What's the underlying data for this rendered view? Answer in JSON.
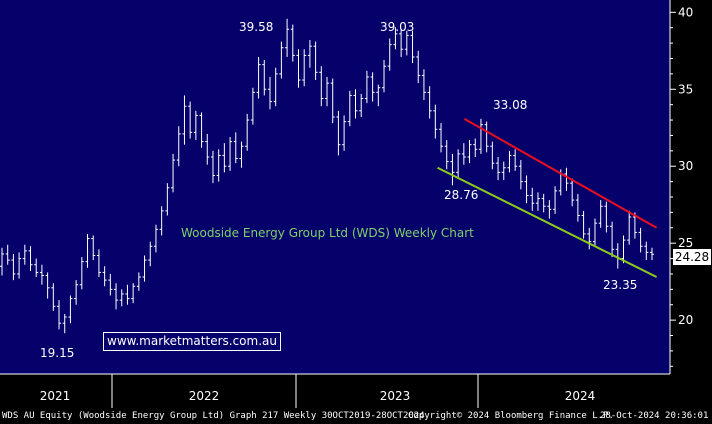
{
  "chart_data": {
    "type": "candlestick",
    "title": "Woodside Energy Group Ltd (WDS) Weekly Chart",
    "website": "www.marketmatters.com.au",
    "y_ticks": [
      "20",
      "25",
      "30",
      "35",
      "40"
    ],
    "x_ticks": [
      "2021",
      "2022",
      "2023",
      "2024"
    ],
    "ylim": [
      16.5,
      40.8
    ],
    "grid": false,
    "last_price": "24.28",
    "annotations": [
      {
        "label": "39.58",
        "x": "2022-06",
        "y": 39.58
      },
      {
        "label": "39.03",
        "x": "2023-01",
        "y": 39.03
      },
      {
        "label": "33.08",
        "x": "2023-09",
        "y": 33.08
      },
      {
        "label": "28.76",
        "x": "2023-07",
        "y": 28.76
      },
      {
        "label": "23.35",
        "x": "2024-08",
        "y": 23.35
      },
      {
        "label": "19.15",
        "x": "2021-02",
        "y": 19.15
      }
    ],
    "trendlines": [
      {
        "name": "resistance",
        "color": "#e8101e",
        "from": {
          "x": "2023-09",
          "y": 33.08
        },
        "to": {
          "x": "2024-10",
          "y": 26.0
        }
      },
      {
        "name": "support",
        "color": "#8ccc1c",
        "from": {
          "x": "2023-07",
          "y": 29.9
        },
        "to": {
          "x": "2024-10",
          "y": 22.8
        }
      }
    ],
    "series": [
      {
        "values": [
          [
            23.5,
            24.7,
            22.9,
            24.3
          ],
          [
            24.3,
            24.9,
            23.6,
            23.9
          ],
          [
            23.9,
            24.3,
            22.6,
            23.0
          ],
          [
            23.0,
            24.4,
            22.7,
            24.0
          ],
          [
            24.0,
            24.9,
            23.6,
            24.5
          ],
          [
            24.5,
            24.8,
            23.2,
            23.6
          ],
          [
            23.6,
            24.0,
            22.8,
            23.1
          ],
          [
            23.1,
            23.6,
            22.3,
            22.9
          ],
          [
            22.9,
            23.1,
            21.4,
            22.1
          ],
          [
            22.1,
            22.4,
            20.6,
            20.9
          ],
          [
            20.9,
            21.3,
            19.4,
            19.8
          ],
          [
            19.8,
            20.4,
            19.15,
            20.2
          ],
          [
            20.2,
            21.6,
            19.8,
            21.4
          ],
          [
            21.4,
            22.6,
            21.0,
            22.3
          ],
          [
            22.3,
            24.1,
            22.0,
            23.8
          ],
          [
            23.8,
            25.6,
            23.4,
            25.3
          ],
          [
            25.3,
            25.5,
            23.9,
            24.2
          ],
          [
            24.2,
            24.6,
            22.8,
            23.1
          ],
          [
            23.1,
            23.5,
            22.2,
            22.6
          ],
          [
            22.6,
            23.0,
            21.6,
            22.0
          ],
          [
            22.0,
            22.4,
            20.7,
            21.3
          ],
          [
            21.3,
            22.0,
            20.9,
            21.7
          ],
          [
            21.7,
            22.3,
            21.0,
            21.4
          ],
          [
            21.4,
            22.4,
            21.1,
            22.2
          ],
          [
            22.2,
            23.1,
            21.9,
            22.8
          ],
          [
            22.8,
            24.2,
            22.5,
            23.9
          ],
          [
            23.9,
            25.1,
            23.5,
            24.8
          ],
          [
            24.8,
            26.2,
            24.4,
            25.9
          ],
          [
            25.9,
            27.4,
            25.5,
            27.1
          ],
          [
            27.1,
            28.9,
            26.8,
            28.6
          ],
          [
            28.6,
            30.8,
            28.3,
            30.4
          ],
          [
            30.4,
            32.6,
            30.0,
            32.1
          ],
          [
            32.1,
            34.6,
            31.4,
            33.9
          ],
          [
            33.9,
            34.2,
            31.8,
            32.2
          ],
          [
            32.2,
            33.6,
            31.7,
            33.3
          ],
          [
            33.3,
            33.5,
            31.2,
            31.6
          ],
          [
            31.6,
            32.1,
            30.1,
            30.6
          ],
          [
            30.6,
            31.0,
            28.9,
            29.4
          ],
          [
            29.4,
            31.1,
            29.0,
            30.7
          ],
          [
            30.7,
            31.5,
            29.6,
            30.0
          ],
          [
            30.0,
            31.9,
            29.7,
            31.6
          ],
          [
            31.6,
            32.2,
            30.2,
            30.5
          ],
          [
            30.5,
            31.6,
            29.9,
            31.3
          ],
          [
            31.3,
            33.4,
            31.0,
            33.0
          ],
          [
            33.0,
            35.1,
            32.7,
            34.8
          ],
          [
            34.8,
            37.1,
            34.4,
            36.6
          ],
          [
            36.6,
            36.9,
            34.6,
            35.0
          ],
          [
            35.0,
            35.8,
            33.7,
            34.2
          ],
          [
            34.2,
            36.4,
            33.9,
            36.0
          ],
          [
            36.0,
            38.1,
            35.7,
            37.7
          ],
          [
            37.7,
            39.58,
            37.1,
            38.9
          ],
          [
            38.9,
            39.2,
            36.8,
            37.2
          ],
          [
            37.2,
            37.6,
            35.1,
            35.6
          ],
          [
            35.6,
            37.6,
            35.2,
            37.2
          ],
          [
            37.2,
            38.2,
            36.4,
            37.8
          ],
          [
            37.8,
            38.1,
            35.6,
            36.1
          ],
          [
            36.1,
            36.5,
            33.9,
            34.4
          ],
          [
            34.4,
            35.8,
            33.9,
            35.4
          ],
          [
            35.4,
            35.7,
            32.8,
            33.2
          ],
          [
            33.2,
            33.6,
            30.7,
            31.4
          ],
          [
            31.4,
            33.3,
            31.0,
            32.9
          ],
          [
            32.9,
            34.9,
            32.6,
            34.6
          ],
          [
            34.6,
            35.0,
            33.1,
            33.6
          ],
          [
            33.6,
            34.7,
            33.2,
            34.4
          ],
          [
            34.4,
            36.2,
            34.1,
            35.8
          ],
          [
            35.8,
            36.1,
            34.2,
            34.8
          ],
          [
            34.8,
            35.3,
            33.9,
            35.1
          ],
          [
            35.1,
            36.9,
            34.8,
            36.5
          ],
          [
            36.5,
            38.3,
            36.2,
            37.9
          ],
          [
            37.9,
            39.03,
            37.6,
            38.6
          ],
          [
            38.6,
            38.9,
            37.1,
            37.6
          ],
          [
            37.6,
            38.8,
            37.2,
            38.5
          ],
          [
            38.5,
            38.8,
            36.7,
            37.1
          ],
          [
            37.1,
            37.5,
            35.4,
            35.9
          ],
          [
            35.9,
            36.3,
            34.3,
            34.8
          ],
          [
            34.8,
            35.2,
            33.1,
            33.6
          ],
          [
            33.6,
            34.0,
            31.8,
            32.4
          ],
          [
            32.4,
            32.8,
            30.9,
            31.3
          ],
          [
            31.3,
            31.7,
            29.8,
            30.3
          ],
          [
            30.3,
            30.8,
            28.76,
            29.6
          ],
          [
            29.6,
            31.1,
            29.3,
            30.8
          ],
          [
            30.8,
            31.5,
            30.1,
            30.6
          ],
          [
            30.6,
            31.7,
            30.2,
            31.4
          ],
          [
            31.4,
            31.8,
            30.6,
            31.1
          ],
          [
            31.1,
            33.08,
            30.8,
            32.7
          ],
          [
            32.7,
            32.9,
            30.9,
            31.3
          ],
          [
            31.3,
            31.6,
            29.8,
            30.2
          ],
          [
            30.2,
            30.6,
            29.1,
            29.6
          ],
          [
            29.6,
            30.3,
            29.1,
            29.9
          ],
          [
            29.9,
            31.0,
            29.6,
            30.7
          ],
          [
            30.7,
            31.1,
            29.7,
            30.0
          ],
          [
            30.0,
            30.4,
            28.5,
            29.0
          ],
          [
            29.0,
            29.4,
            27.6,
            28.1
          ],
          [
            28.1,
            28.6,
            27.1,
            27.6
          ],
          [
            27.6,
            28.3,
            27.1,
            27.9
          ],
          [
            27.9,
            28.2,
            27.0,
            27.4
          ],
          [
            27.4,
            27.8,
            26.6,
            27.2
          ],
          [
            27.2,
            28.7,
            26.9,
            28.4
          ],
          [
            28.4,
            29.8,
            28.1,
            29.5
          ],
          [
            29.5,
            29.9,
            28.4,
            28.9
          ],
          [
            28.9,
            29.2,
            27.4,
            27.8
          ],
          [
            27.8,
            28.2,
            26.4,
            26.8
          ],
          [
            26.8,
            27.1,
            25.3,
            25.6
          ],
          [
            25.6,
            26.0,
            24.6,
            25.1
          ],
          [
            25.1,
            26.6,
            24.8,
            26.3
          ],
          [
            26.3,
            27.8,
            26.0,
            27.4
          ],
          [
            27.4,
            27.7,
            25.7,
            26.1
          ],
          [
            26.1,
            26.4,
            24.1,
            24.6
          ],
          [
            24.6,
            25.0,
            23.35,
            24.0
          ],
          [
            24.0,
            25.5,
            23.7,
            25.2
          ],
          [
            25.2,
            27.1,
            24.9,
            26.7
          ],
          [
            26.7,
            27.0,
            25.3,
            25.7
          ],
          [
            25.7,
            26.0,
            24.4,
            24.8
          ],
          [
            24.8,
            25.1,
            23.9,
            24.4
          ],
          [
            24.4,
            24.7,
            23.9,
            24.28
          ]
        ]
      }
    ]
  },
  "footer": {
    "security": "WDS AU Equity (Woodside Energy Group Ltd) Graph 217  Weekly 30OCT2019-28OCT2024",
    "copyright": "Copyright© 2024 Bloomberg Finance L.P.",
    "timestamp": "28-Oct-2024 20:36:01"
  },
  "colors": {
    "background": "#06006b",
    "candles": "#ffffff",
    "axis": "#ffffff"
  }
}
